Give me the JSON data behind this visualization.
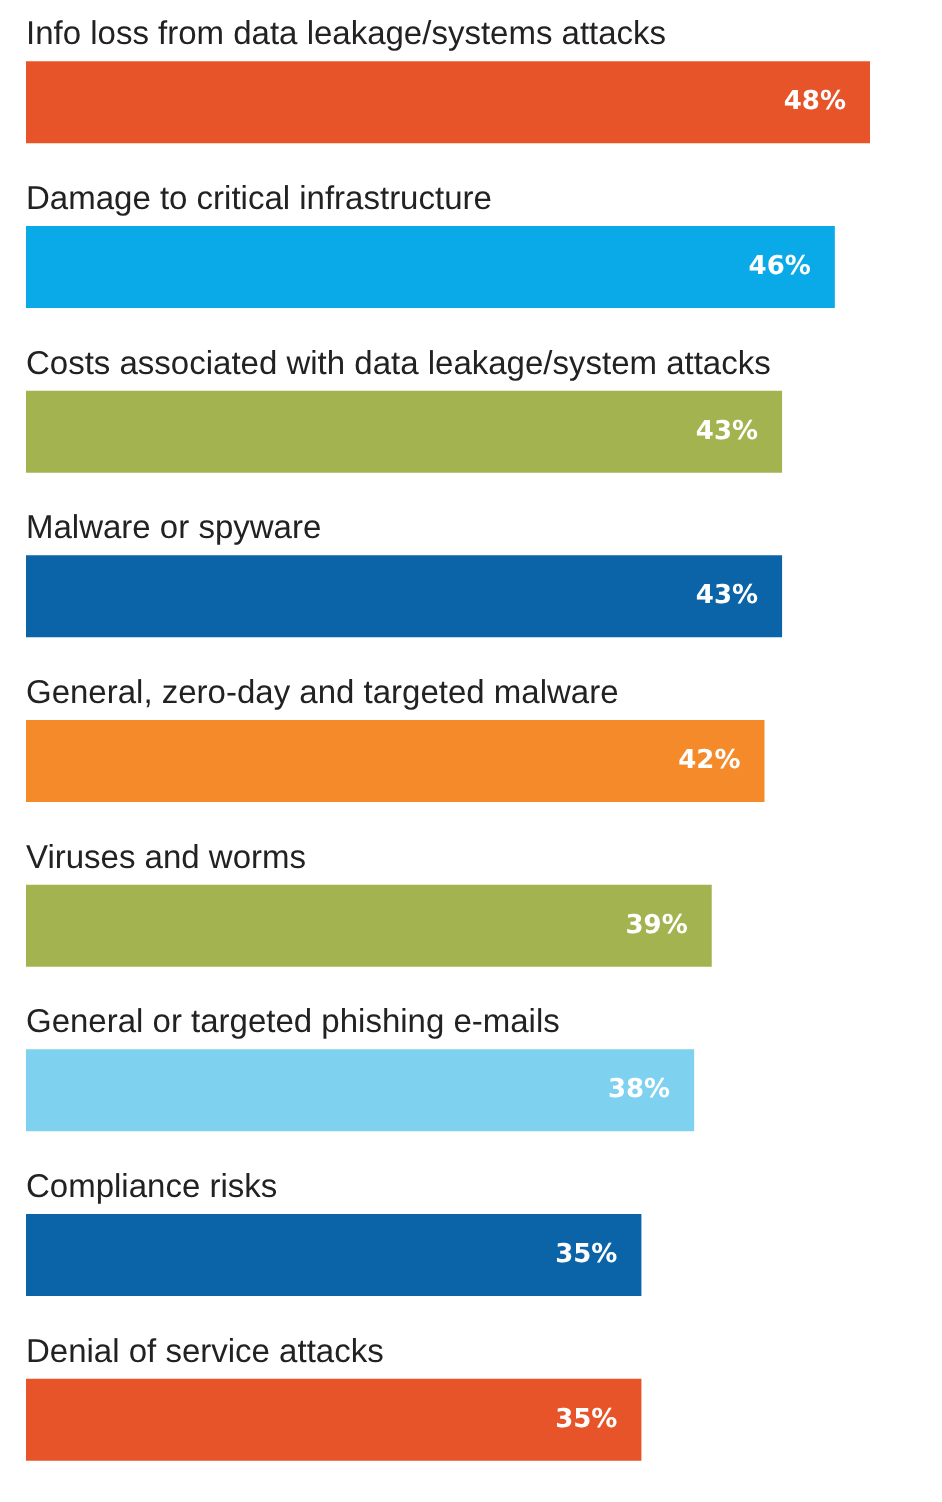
{
  "chart_data": {
    "type": "bar",
    "orientation": "horizontal",
    "categories": [
      "Info loss from data leakage/systems attacks",
      "Damage to critical infrastructure",
      "Costs associated with data leakage/system attacks",
      "Malware or spyware",
      "General, zero-day and targeted malware",
      "Viruses and worms",
      "General or targeted phishing e-mails",
      "Compliance risks",
      "Denial of service attacks"
    ],
    "values": [
      48,
      46,
      43,
      43,
      42,
      39,
      38,
      35,
      35
    ],
    "colors": [
      "#e8542a",
      "#0aa9e8",
      "#a3b350",
      "#0b64a8",
      "#f58a2a",
      "#a3b350",
      "#7fd1f0",
      "#0b64a8",
      "#e8542a"
    ],
    "value_labels": [
      "48%",
      "46%",
      "43%",
      "43%",
      "42%",
      "39%",
      "38%",
      "35%",
      "35%"
    ]
  }
}
